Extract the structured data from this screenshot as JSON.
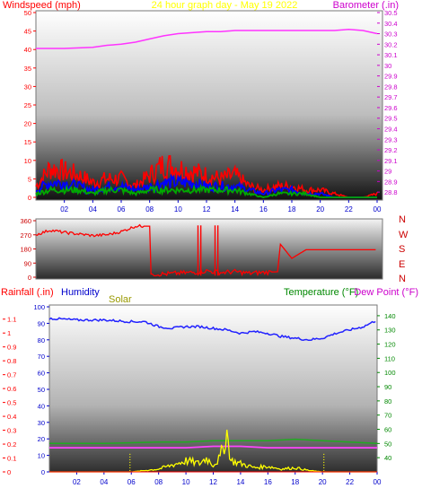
{
  "header": {
    "left_label": "Windspeed (mph)",
    "title": "24 hour graph day - May 19 2022",
    "right_label": "Barometer (.in)"
  },
  "direction_letters": [
    "N",
    "W",
    "S",
    "E",
    "N"
  ],
  "bottom_labels": {
    "rainfall": "Rainfall (.in)",
    "humidity": "Humidity",
    "solar": "Solar",
    "temperature": "Temperature (°F)",
    "dewpoint": "Dew Point (°F)"
  },
  "colors": {
    "wind_axis": "#ff0000",
    "baro_axis": "#cc00cc",
    "title": "#ffff00",
    "humidity": "#0000cc",
    "solar": "#999900",
    "temperature": "#008800",
    "dewpoint": "#cc00cc",
    "gust": "#ff0000",
    "avg_wind": "#0000ff",
    "low_wind": "#00aa00",
    "direction": "#ff0000",
    "rain": "#ff0000",
    "humidity_line": "#2222ff",
    "temp_line": "#22aa22",
    "dew_line": "#ff44ff",
    "solar_line": "#ffff00"
  },
  "chart_data": [
    {
      "type": "line",
      "name": "wind_barometer",
      "x_ticks": [
        "02",
        "04",
        "06",
        "08",
        "10",
        "12",
        "14",
        "16",
        "18",
        "20",
        "22",
        "00"
      ],
      "y_left_ticks": [
        0,
        5,
        10,
        15,
        20,
        25,
        30,
        35,
        40,
        45,
        50
      ],
      "y_left_lim": [
        0,
        50
      ],
      "y_right_ticks": [
        "28.8",
        "28.9",
        "29",
        "29.1",
        "29.2",
        "29.3",
        "29.4",
        "29.5",
        "29.6",
        "29.7",
        "29.8",
        "29.9",
        "30",
        "30.1",
        "30.2",
        "30.3",
        "30.4",
        "30.5"
      ],
      "y_right_lim": [
        28.75,
        30.5
      ],
      "x_range_hours": [
        0,
        24
      ],
      "series": [
        {
          "key": "barometer",
          "axis": "right",
          "x": [
            0,
            2,
            4,
            5,
            6,
            7,
            8,
            9,
            10,
            11,
            12,
            13,
            14,
            16,
            18,
            20,
            21,
            22,
            23,
            24
          ],
          "values": [
            30.16,
            30.16,
            30.17,
            30.19,
            30.2,
            30.22,
            30.25,
            30.28,
            30.3,
            30.31,
            30.32,
            30.32,
            30.33,
            30.33,
            30.33,
            30.33,
            30.33,
            30.34,
            30.33,
            30.3
          ]
        },
        {
          "key": "gust",
          "axis": "left",
          "x": [
            0,
            1,
            2,
            3,
            4,
            5,
            6,
            7,
            8,
            9,
            10,
            11,
            12,
            13,
            14,
            15,
            16,
            17,
            18,
            19,
            20,
            21,
            22,
            23,
            24
          ],
          "values": [
            3,
            8,
            7,
            6,
            4,
            5,
            5,
            3,
            6,
            9,
            8,
            7,
            6,
            5,
            6,
            3,
            2,
            3,
            3,
            2,
            2,
            1,
            0,
            0,
            1
          ]
        },
        {
          "key": "avg_wind",
          "axis": "left",
          "x": [
            0,
            1,
            2,
            3,
            4,
            5,
            6,
            7,
            8,
            9,
            10,
            11,
            12,
            13,
            14,
            15,
            16,
            17,
            18,
            19,
            20,
            21,
            22,
            23,
            24
          ],
          "values": [
            2,
            4,
            4,
            3,
            2,
            3,
            3,
            2,
            3,
            4,
            4,
            4,
            3,
            3,
            3,
            2,
            1,
            2,
            2,
            1,
            1,
            0,
            0,
            0,
            0
          ]
        },
        {
          "key": "low_wind",
          "axis": "left",
          "x": [
            0,
            1,
            2,
            3,
            4,
            5,
            6,
            7,
            8,
            9,
            10,
            11,
            12,
            13,
            14,
            15,
            16,
            17,
            18,
            19,
            20,
            21,
            22,
            23,
            24
          ],
          "values": [
            1,
            2,
            2,
            2,
            1,
            2,
            2,
            1,
            2,
            2,
            2,
            2,
            2,
            2,
            2,
            1,
            0,
            1,
            1,
            1,
            0,
            0,
            0,
            0,
            0
          ]
        }
      ]
    },
    {
      "type": "line",
      "name": "wind_direction",
      "y_ticks": [
        0,
        90,
        180,
        270,
        360
      ],
      "ylim": [
        0,
        360
      ],
      "x_range_hours": [
        0,
        24
      ],
      "series": [
        {
          "key": "direction",
          "x": [
            0,
            1,
            2,
            3,
            4,
            5,
            6,
            7,
            8,
            8.1,
            9,
            10,
            11,
            12,
            13,
            14,
            15,
            16,
            17,
            17.2,
            18,
            19,
            20,
            21,
            22,
            23,
            24
          ],
          "values": [
            270,
            300,
            285,
            275,
            265,
            270,
            290,
            325,
            325,
            20,
            20,
            25,
            30,
            40,
            30,
            35,
            25,
            30,
            35,
            210,
            120,
            175,
            175,
            175,
            175,
            175,
            175
          ]
        }
      ]
    },
    {
      "type": "line",
      "name": "rain_humidity_solar_temperature",
      "x_ticks": [
        "02",
        "04",
        "06",
        "08",
        "10",
        "12",
        "14",
        "16",
        "18",
        "20",
        "22",
        "00"
      ],
      "y_left_ticks": [
        "0",
        "0.1",
        "0.2",
        "0.3",
        "0.4",
        "0.5",
        "0.6",
        "0.7",
        "0.8",
        "0.9",
        "1",
        "1.1"
      ],
      "y_left_lim": [
        0,
        1.15
      ],
      "y_humidity_ticks": [
        0,
        10,
        20,
        30,
        40,
        50,
        60,
        70,
        80,
        90,
        100
      ],
      "y_humidity_lim": [
        0,
        100
      ],
      "y_right_ticks": [
        40,
        50,
        60,
        70,
        80,
        90,
        100,
        110,
        120,
        130,
        140
      ],
      "y_right_lim": [
        30,
        145
      ],
      "x_range_hours": [
        0,
        24
      ],
      "series": [
        {
          "key": "humidity",
          "axis": "humidity",
          "x": [
            0,
            2,
            4,
            6,
            7,
            8,
            9,
            10,
            11,
            12,
            13,
            14,
            15,
            16,
            17,
            18,
            19,
            20,
            21,
            22,
            23,
            24
          ],
          "values": [
            93,
            92,
            92,
            91,
            91,
            88,
            87,
            88,
            88,
            87,
            86,
            84,
            85,
            84,
            82,
            81,
            80,
            81,
            84,
            86,
            88,
            92
          ]
        },
        {
          "key": "temperature",
          "axis": "right",
          "x": [
            0,
            4,
            8,
            10,
            12,
            14,
            16,
            18,
            20,
            22,
            24
          ],
          "values": [
            50,
            50,
            51,
            51,
            52,
            52,
            52,
            53,
            52,
            51,
            50
          ]
        },
        {
          "key": "dewpoint",
          "axis": "right",
          "x": [
            0,
            4,
            8,
            10,
            12,
            14,
            16,
            18,
            20,
            22,
            24
          ],
          "values": [
            47,
            47,
            47,
            47,
            48,
            48,
            47,
            47,
            47,
            47,
            47
          ]
        },
        {
          "key": "solar",
          "axis": "left",
          "x": [
            0,
            6,
            7,
            8,
            9,
            10,
            11,
            11.5,
            12,
            12.5,
            13,
            13.3,
            14,
            15,
            16,
            17,
            18,
            19,
            20,
            24
          ],
          "values": [
            0,
            0,
            0.01,
            0.02,
            0.05,
            0.08,
            0.06,
            0.1,
            0.05,
            0.1,
            0.28,
            0.08,
            0.06,
            0.03,
            0.04,
            0.02,
            0.03,
            0.01,
            0,
            0
          ]
        },
        {
          "key": "rainfall",
          "axis": "left",
          "x": [
            0,
            24
          ],
          "values": [
            0,
            0
          ]
        }
      ],
      "markers_hours": [
        5.9,
        20.1
      ]
    }
  ]
}
